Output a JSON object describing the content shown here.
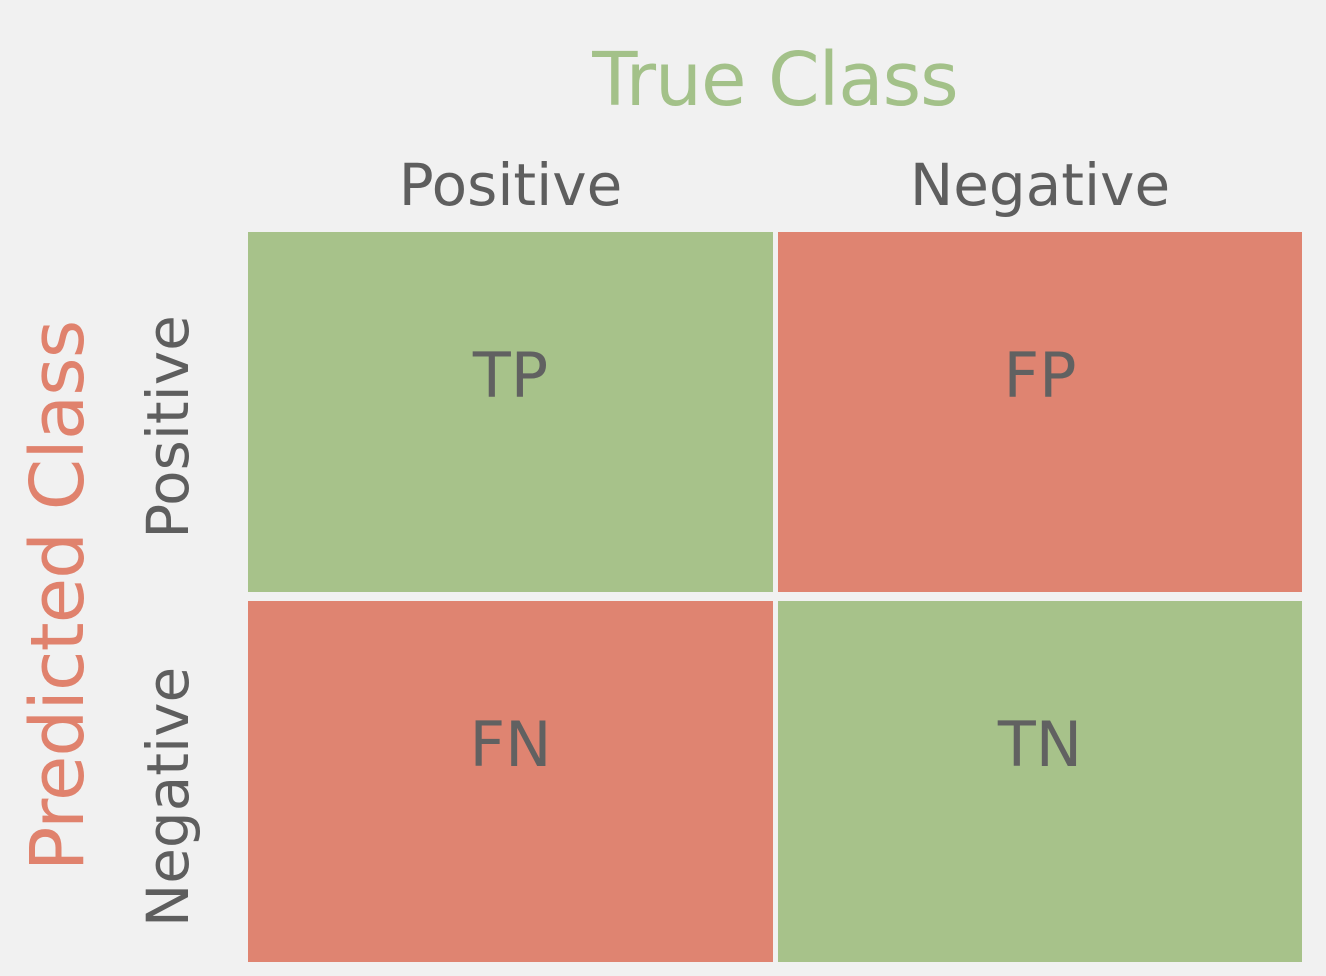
{
  "true_class": {
    "title": "True Class",
    "columns": [
      "Positive",
      "Negative"
    ],
    "color": "#a3c189"
  },
  "predicted_class": {
    "title": "Predicted Class",
    "rows": [
      "Positive",
      "Negative"
    ],
    "color": "#e0826d"
  },
  "matrix": [
    [
      {
        "label": "TP",
        "color": "#a7c28a"
      },
      {
        "label": "FP",
        "color": "#df8471"
      }
    ],
    [
      {
        "label": "FN",
        "color": "#df8471"
      },
      {
        "label": "TN",
        "color": "#a7c28a"
      }
    ]
  ]
}
